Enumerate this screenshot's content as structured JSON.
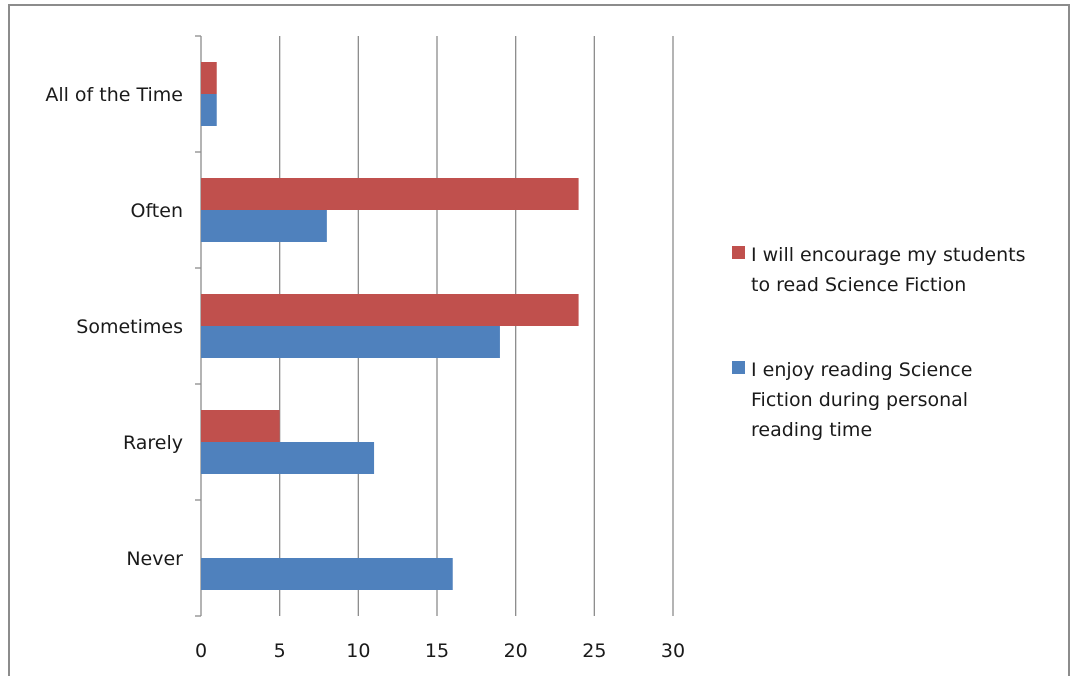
{
  "chart_data": {
    "type": "bar",
    "orientation": "horizontal",
    "categories": [
      "All of the Time",
      "Often",
      "Sometimes",
      "Rarely",
      "Never"
    ],
    "series": [
      {
        "name": "I will encourage my students to read Science Fiction",
        "color": "#c0504d",
        "values": [
          1,
          24,
          24,
          5,
          0
        ]
      },
      {
        "name": "I enjoy reading Science Fiction during personal reading time",
        "color": "#4f81bd",
        "values": [
          1,
          8,
          19,
          11,
          16
        ]
      }
    ],
    "xlim": [
      0,
      30
    ],
    "xticks": [
      0,
      5,
      10,
      15,
      20,
      25,
      30
    ],
    "grid": true,
    "legend_position": "right",
    "legend_lines": [
      [
        "I will encourage my students",
        "to read Science Fiction"
      ],
      [
        "I enjoy reading Science",
        "Fiction during personal",
        "reading time"
      ]
    ]
  }
}
